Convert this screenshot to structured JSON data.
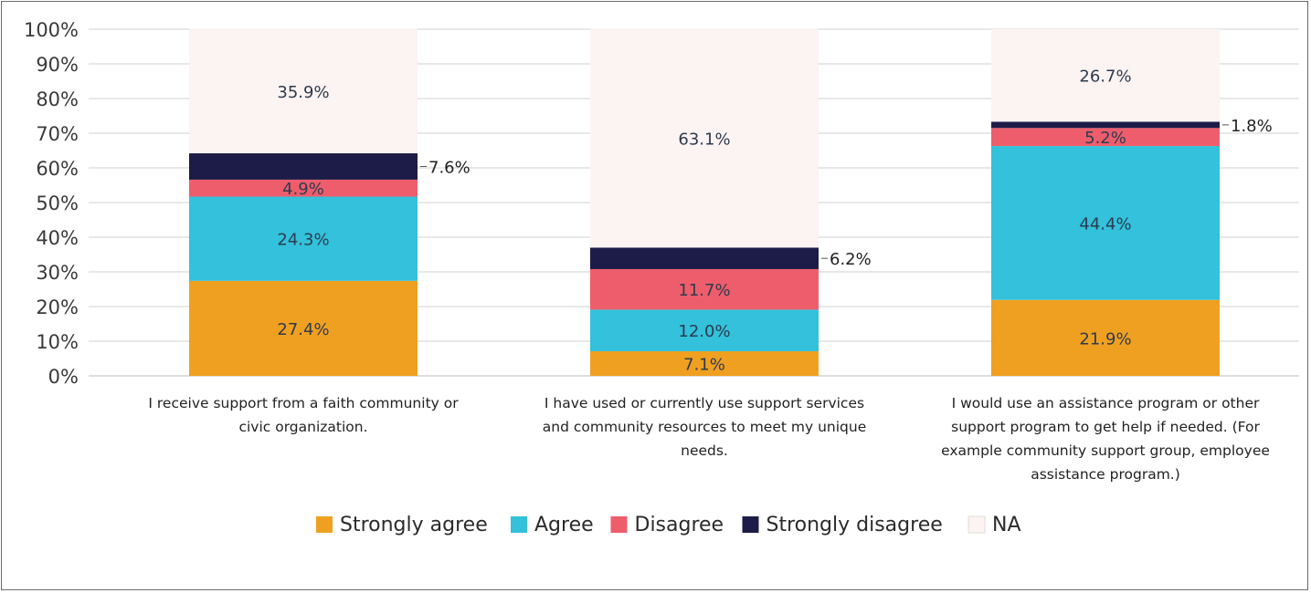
{
  "chart_data": {
    "type": "bar",
    "stacked": true,
    "title": "",
    "xlabel": "",
    "ylabel": "",
    "ylim": [
      0,
      100
    ],
    "y_ticks": [
      "0%",
      "10%",
      "20%",
      "30%",
      "40%",
      "50%",
      "60%",
      "70%",
      "80%",
      "90%",
      "100%"
    ],
    "grid": true,
    "legend_position": "bottom",
    "categories": [
      [
        "I receive support from a faith community or",
        "civic organization."
      ],
      [
        "I have used or currently use support services",
        "and community resources to meet my unique",
        "needs."
      ],
      [
        "I would use an assistance program or other",
        "support program to get help if needed. (For",
        "example community support group, employee",
        "assistance program.)"
      ]
    ],
    "series": [
      {
        "name": "Strongly agree",
        "color": "#F0A020",
        "values": [
          27.4,
          7.1,
          21.9
        ],
        "labels": [
          "27.4%",
          "7.1%",
          "21.9%"
        ]
      },
      {
        "name": "Agree",
        "color": "#33C1DB",
        "values": [
          24.3,
          12.0,
          44.4
        ],
        "labels": [
          "24.3%",
          "12.0%",
          "44.4%"
        ]
      },
      {
        "name": "Disagree",
        "color": "#EE5D6C",
        "values": [
          4.9,
          11.7,
          5.2
        ],
        "labels": [
          "4.9%",
          "11.7%",
          "5.2%"
        ]
      },
      {
        "name": "Strongly disagree",
        "color": "#1D1B47",
        "values": [
          7.6,
          6.2,
          1.8
        ],
        "labels": [
          "7.6%",
          "6.2%",
          "1.8%"
        ]
      },
      {
        "name": "NA",
        "color": "#FCF3F3",
        "values": [
          35.9,
          63.1,
          26.7
        ],
        "labels": [
          "35.9%",
          "63.1%",
          "26.7%"
        ]
      }
    ]
  }
}
